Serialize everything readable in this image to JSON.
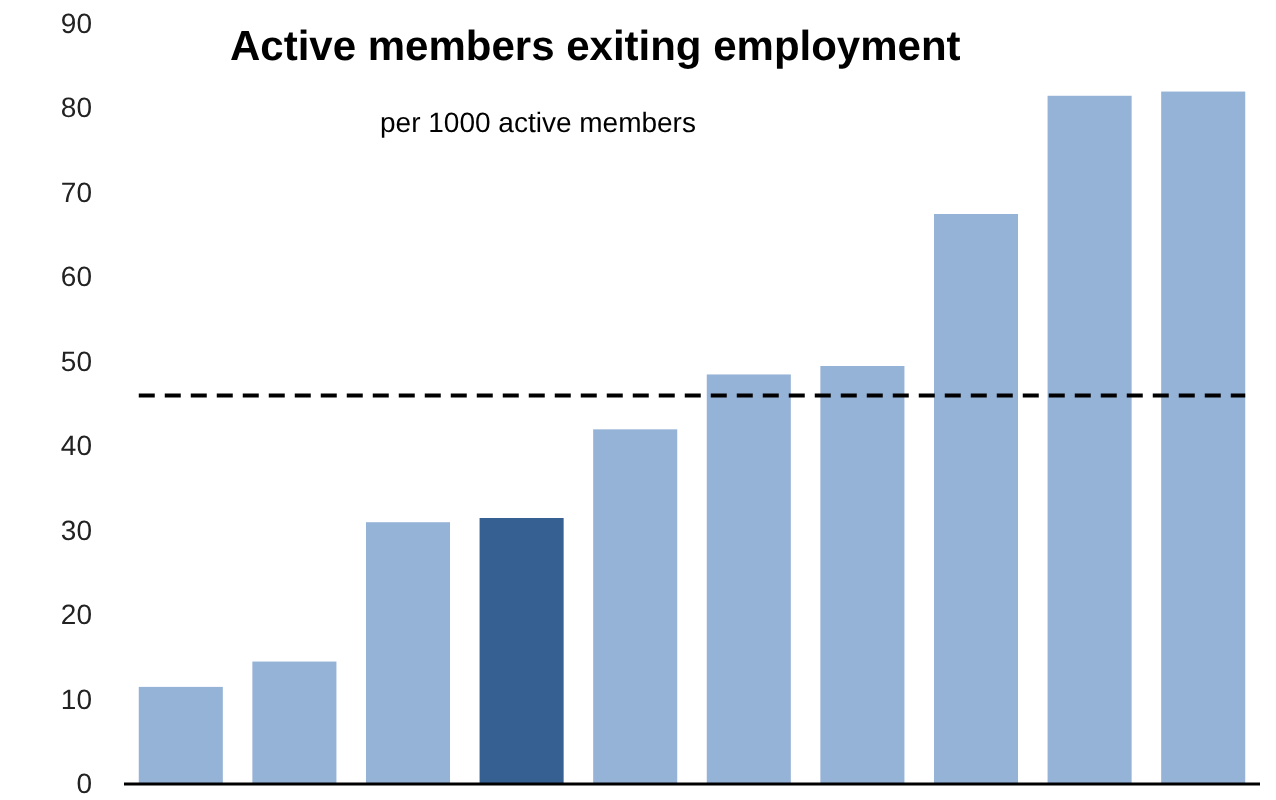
{
  "chart_data": {
    "type": "bar",
    "title": "Active members exiting employment",
    "subtitle": "per 1000 active members",
    "categories": [
      null,
      null,
      null,
      null,
      null,
      null,
      null,
      null,
      null,
      null
    ],
    "values": [
      11.5,
      14.5,
      31,
      31.5,
      42,
      48.5,
      49.5,
      67.5,
      81.5,
      82
    ],
    "colors": [
      "#95b3d7",
      "#95b3d7",
      "#95b3d7",
      "#366092",
      "#95b3d7",
      "#95b3d7",
      "#95b3d7",
      "#95b3d7",
      "#95b3d7",
      "#95b3d7"
    ],
    "ylim": [
      0,
      90
    ],
    "yticks": [
      0,
      10,
      20,
      30,
      40,
      50,
      60,
      70,
      80,
      90
    ],
    "ref_lines": [
      {
        "axis": "y",
        "value": 46,
        "label": null,
        "color": "#000000",
        "line_style": "dashed"
      }
    ],
    "grid": false
  }
}
